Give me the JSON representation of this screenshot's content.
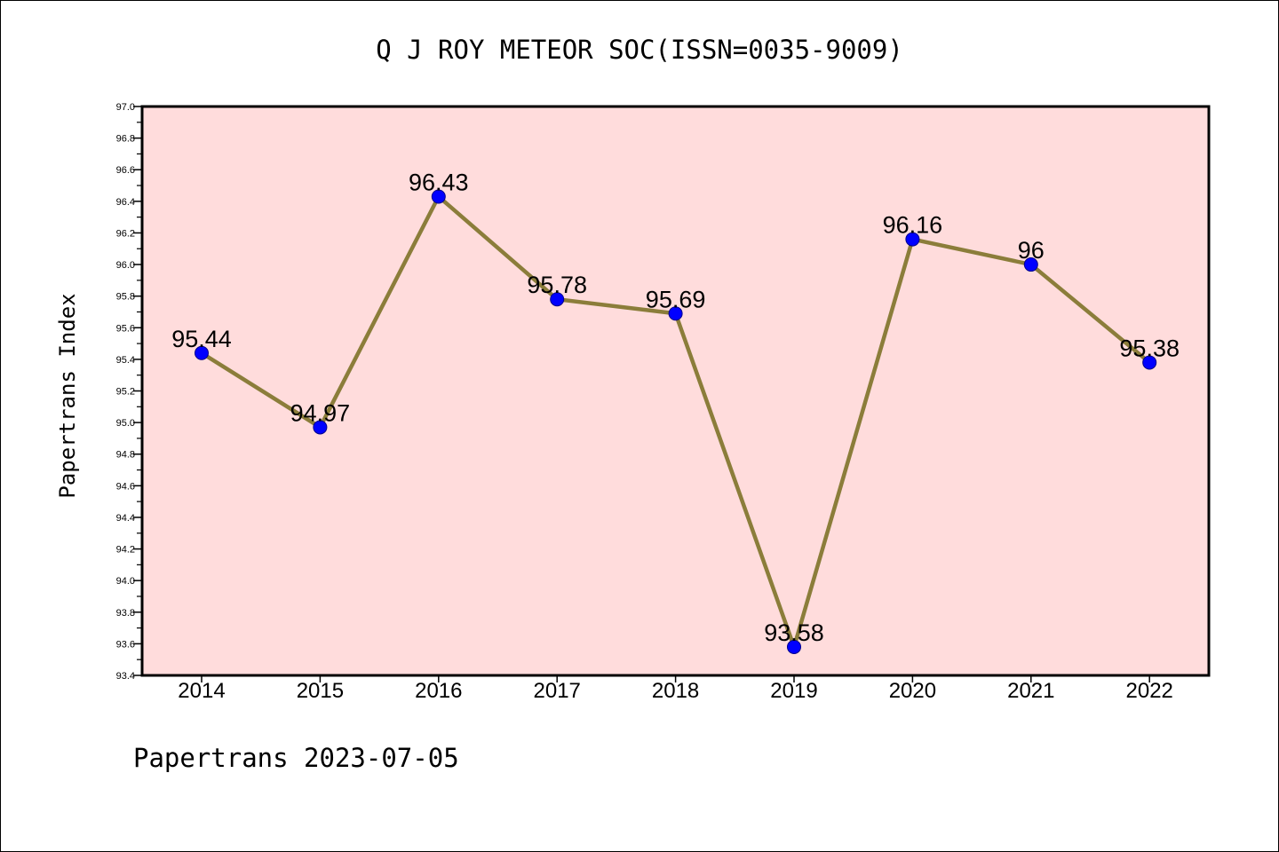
{
  "chart_data": {
    "type": "line",
    "title": "Q J ROY METEOR SOC(ISSN=0035-9009)",
    "ylabel": "Papertrans Index",
    "xlabel": "",
    "footer": "Papertrans 2023-07-05",
    "categories": [
      "2014",
      "2015",
      "2016",
      "2017",
      "2018",
      "2019",
      "2020",
      "2021",
      "2022"
    ],
    "series": [
      {
        "values": [
          95.44,
          94.97,
          96.43,
          95.78,
          95.69,
          93.58,
          96.16,
          96,
          95.38
        ],
        "labels": [
          "95.44",
          "94.97",
          "96.43",
          "95.78",
          "95.69",
          "93.58",
          "96.16",
          "96",
          "95.38"
        ]
      }
    ],
    "ylim": [
      93.4,
      97.0
    ],
    "yticks": [
      "93.4",
      "93.6",
      "93.8",
      "94.0",
      "94.2",
      "94.4",
      "94.6",
      "94.8",
      "95.0",
      "95.2",
      "95.4",
      "95.6",
      "95.8",
      "96.0",
      "96.2",
      "96.4",
      "96.6",
      "96.8",
      "97.0"
    ],
    "grid": false,
    "colors": {
      "plot_background": "#ffdcdc",
      "line": "#8b7d3a",
      "marker": "#0000ff"
    }
  }
}
